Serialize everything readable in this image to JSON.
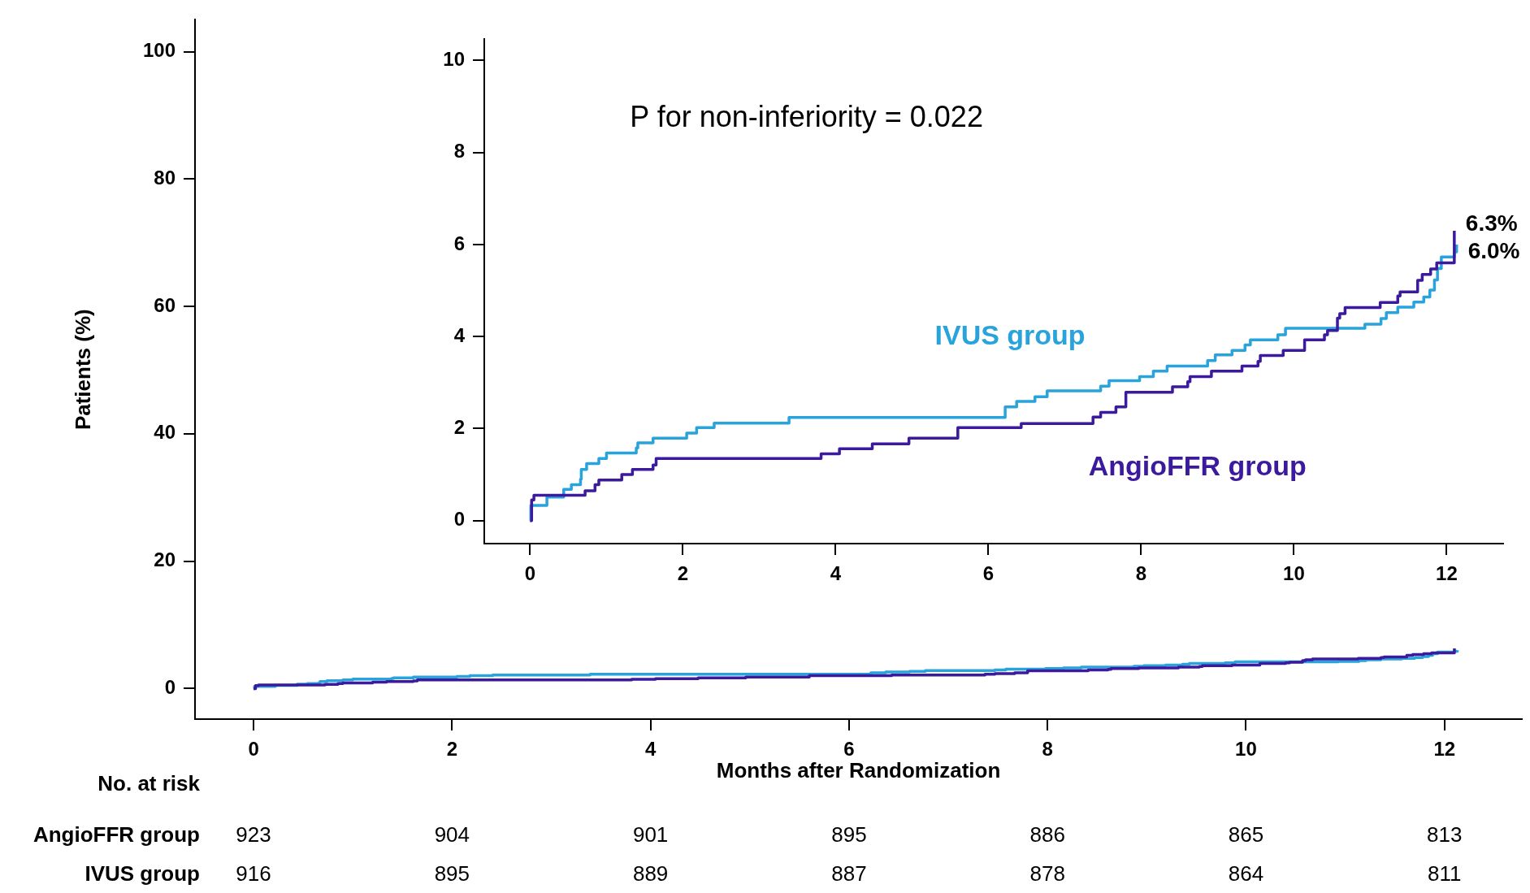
{
  "chart_data": [
    {
      "type": "step",
      "xlabel": "Months after Randomization",
      "ylabel": "Patients (%)",
      "xlim": [
        -0.59,
        12.78
      ],
      "xticks": [
        0,
        2,
        4,
        6,
        8,
        10,
        12
      ],
      "ylim": [
        -4.8,
        105
      ],
      "yticks": [
        0,
        20,
        40,
        60,
        80,
        100
      ],
      "series": [
        {
          "color": "#3b1a9e",
          "x": [
            0,
            0.02,
            0.05,
            0.72,
            0.85,
            0.9,
            1.2,
            1.34,
            1.61,
            1.65,
            3.81,
            4.05,
            4.48,
            4.96,
            5.6,
            6.43,
            7.37,
            7.47,
            7.67,
            7.8,
            8.41,
            8.61,
            8.64,
            8.92,
            9.32,
            9.53,
            9.56,
            9.86,
            10.14,
            10.4,
            10.44,
            10.57,
            10.6,
            10.67,
            11.13,
            11.36,
            11.39,
            11.62,
            11.68,
            11.79,
            11.87,
            12.1
          ],
          "values": [
            0,
            0.45,
            0.55,
            0.65,
            0.78,
            0.88,
            1.0,
            1.11,
            1.21,
            1.35,
            1.45,
            1.56,
            1.67,
            1.79,
            2.02,
            2.11,
            2.25,
            2.35,
            2.47,
            2.79,
            2.91,
            3.02,
            3.13,
            3.25,
            3.36,
            3.46,
            3.59,
            3.7,
            3.93,
            4.04,
            4.13,
            4.4,
            4.5,
            4.63,
            4.74,
            4.88,
            4.97,
            5.22,
            5.35,
            5.47,
            5.6,
            6.3
          ]
        },
        {
          "color": "#29a3dc",
          "x": [
            0,
            0.01,
            0.22,
            0.44,
            0.54,
            0.66,
            0.67,
            0.74,
            0.9,
            1.0,
            1.39,
            1.41,
            1.61,
            2.05,
            2.18,
            2.41,
            3.39,
            6.22,
            6.37,
            6.61,
            6.77,
            7.47,
            7.58,
            7.98,
            8.16,
            8.34,
            8.87,
            8.97,
            9.19,
            9.36,
            9.43,
            9.79,
            9.89,
            10.93,
            11.14,
            11.21,
            11.36,
            11.57,
            11.7,
            11.78,
            11.84,
            11.88,
            11.93,
            12.1,
            12.13
          ],
          "values": [
            0,
            0.33,
            0.51,
            0.68,
            0.78,
            0.9,
            1.11,
            1.24,
            1.35,
            1.47,
            1.58,
            1.69,
            1.79,
            1.9,
            2.02,
            2.12,
            2.24,
            2.47,
            2.59,
            2.69,
            2.82,
            2.92,
            3.04,
            3.13,
            3.25,
            3.36,
            3.48,
            3.6,
            3.7,
            3.82,
            3.93,
            4.04,
            4.18,
            4.27,
            4.39,
            4.52,
            4.64,
            4.75,
            4.86,
            5.01,
            5.23,
            5.48,
            5.73,
            5.84,
            6.0
          ]
        }
      ],
      "annotations": [
        "No. at risk",
        "AngioFFR group",
        "923",
        "904",
        "901",
        "895",
        "886",
        "865",
        "813",
        "IVUS group",
        "916",
        "895",
        "889",
        "887",
        "878",
        "864",
        "811"
      ]
    },
    {
      "type": "step",
      "xlim": [
        -0.6,
        12.74
      ],
      "xticks": [
        0,
        2,
        4,
        6,
        8,
        10,
        12
      ],
      "ylim": [
        -0.5,
        10.46
      ],
      "yticks": [
        0,
        2,
        4,
        6,
        8,
        10
      ],
      "series": [
        {
          "name": "AngioFFR group",
          "color": "#3b1a9e",
          "x": [
            0,
            0.02,
            0.05,
            0.72,
            0.85,
            0.9,
            1.2,
            1.34,
            1.61,
            1.65,
            3.81,
            4.05,
            4.48,
            4.96,
            5.6,
            6.43,
            7.37,
            7.47,
            7.67,
            7.8,
            8.41,
            8.61,
            8.64,
            8.92,
            9.32,
            9.53,
            9.56,
            9.86,
            10.14,
            10.4,
            10.44,
            10.57,
            10.6,
            10.67,
            11.13,
            11.36,
            11.39,
            11.62,
            11.68,
            11.79,
            11.87,
            12.1
          ],
          "values": [
            0,
            0.45,
            0.55,
            0.65,
            0.78,
            0.88,
            1.0,
            1.11,
            1.21,
            1.35,
            1.45,
            1.56,
            1.67,
            1.79,
            2.02,
            2.11,
            2.25,
            2.35,
            2.47,
            2.79,
            2.91,
            3.02,
            3.13,
            3.25,
            3.36,
            3.46,
            3.59,
            3.7,
            3.93,
            4.04,
            4.13,
            4.4,
            4.5,
            4.63,
            4.74,
            4.88,
            4.97,
            5.22,
            5.35,
            5.47,
            5.6,
            6.3
          ]
        },
        {
          "name": "IVUS group",
          "color": "#29a3dc",
          "x": [
            0,
            0.01,
            0.22,
            0.44,
            0.54,
            0.66,
            0.67,
            0.74,
            0.9,
            1.0,
            1.39,
            1.41,
            1.61,
            2.05,
            2.18,
            2.41,
            3.39,
            6.22,
            6.37,
            6.61,
            6.77,
            7.47,
            7.58,
            7.98,
            8.16,
            8.34,
            8.87,
            8.97,
            9.19,
            9.36,
            9.43,
            9.79,
            9.89,
            10.93,
            11.14,
            11.21,
            11.36,
            11.57,
            11.7,
            11.78,
            11.84,
            11.88,
            11.93,
            12.1,
            12.13
          ],
          "values": [
            0,
            0.33,
            0.51,
            0.68,
            0.78,
            0.9,
            1.11,
            1.24,
            1.35,
            1.47,
            1.58,
            1.69,
            1.79,
            1.9,
            2.02,
            2.12,
            2.24,
            2.47,
            2.59,
            2.69,
            2.82,
            2.92,
            3.04,
            3.13,
            3.25,
            3.36,
            3.48,
            3.6,
            3.7,
            3.82,
            3.93,
            4.04,
            4.18,
            4.27,
            4.39,
            4.52,
            4.64,
            4.75,
            4.86,
            5.01,
            5.23,
            5.48,
            5.73,
            5.84,
            6.0
          ]
        }
      ],
      "annotations": [
        "P for non-inferiority = 0.022",
        {
          "text": "6.3%",
          "x": 12.1,
          "y": 6.3
        },
        {
          "text": "6.0%",
          "x": 12.13,
          "y": 6.0
        }
      ]
    }
  ]
}
